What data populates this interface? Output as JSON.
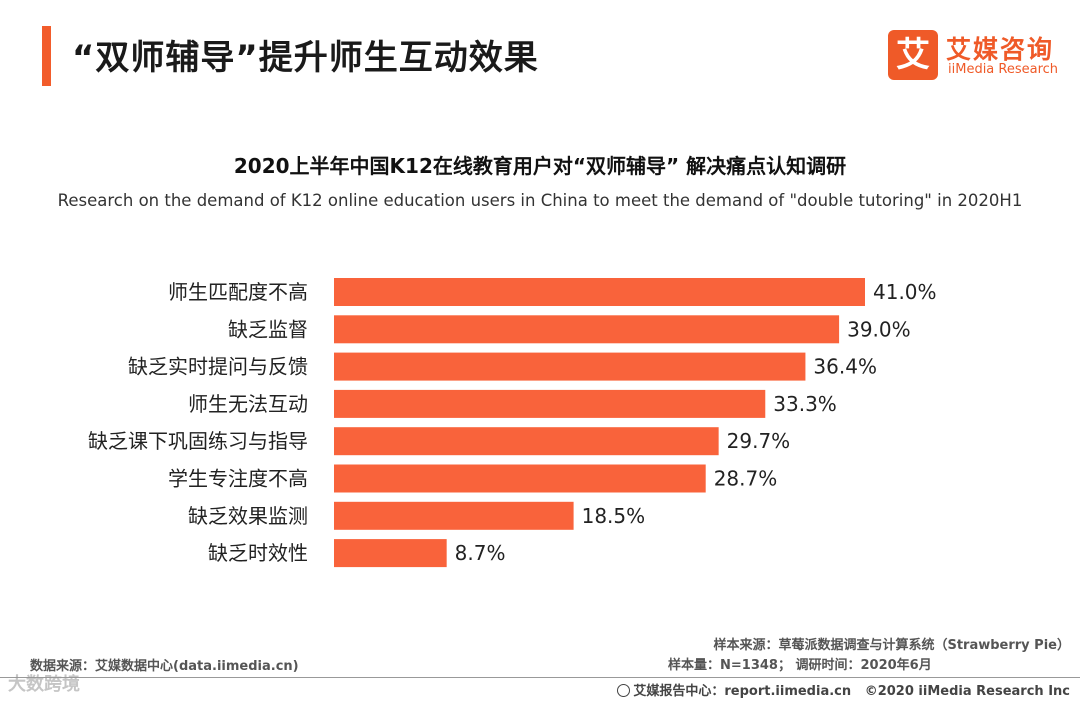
{
  "header": {
    "title": "“双师辅导”提升师生互动效果",
    "logo_mark": "艾",
    "logo_cn": "艾媒咨询",
    "logo_en": "iiMedia Research"
  },
  "colors": {
    "accent": "#f25c2b",
    "bar": "#f9633b"
  },
  "chart_data": {
    "type": "bar",
    "orientation": "horizontal",
    "title": "2020上半年中国K12在线教育用户对“双师辅导” 解决痛点认知调研",
    "subtitle": "Research on the demand of K12 online education users in China to meet the demand of \"double tutoring\" in 2020H1",
    "categories": [
      "师生匹配度不高",
      "缺乏监督",
      "缺乏实时提问与反馈",
      "师生无法互动",
      "缺乏课下巩固练习与指导",
      "学生专注度不高",
      "缺乏效果监测",
      "缺乏时效性"
    ],
    "values": [
      41.0,
      39.0,
      36.4,
      33.3,
      29.7,
      28.7,
      18.5,
      8.7
    ],
    "value_labels": [
      "41.0%",
      "39.0%",
      "36.4%",
      "33.3%",
      "29.7%",
      "28.7%",
      "18.5%",
      "8.7%"
    ],
    "unit": "%",
    "xlim": [
      0,
      41.0
    ],
    "xlabel": "",
    "ylabel": "",
    "grid": false
  },
  "sources": {
    "data_source": "数据来源：艾媒数据中心(data.iimedia.cn)",
    "sample_source": "样本来源：草莓派数据调查与计算系统（Strawberry Pie）",
    "sample_info": "样本量：N=1348； 调研时间：2020年6月"
  },
  "footer": {
    "report_center": "艾媒报告中心：report.iimedia.cn",
    "copyright": "©2020  iiMedia Research  Inc"
  },
  "watermark": "大数跨境"
}
